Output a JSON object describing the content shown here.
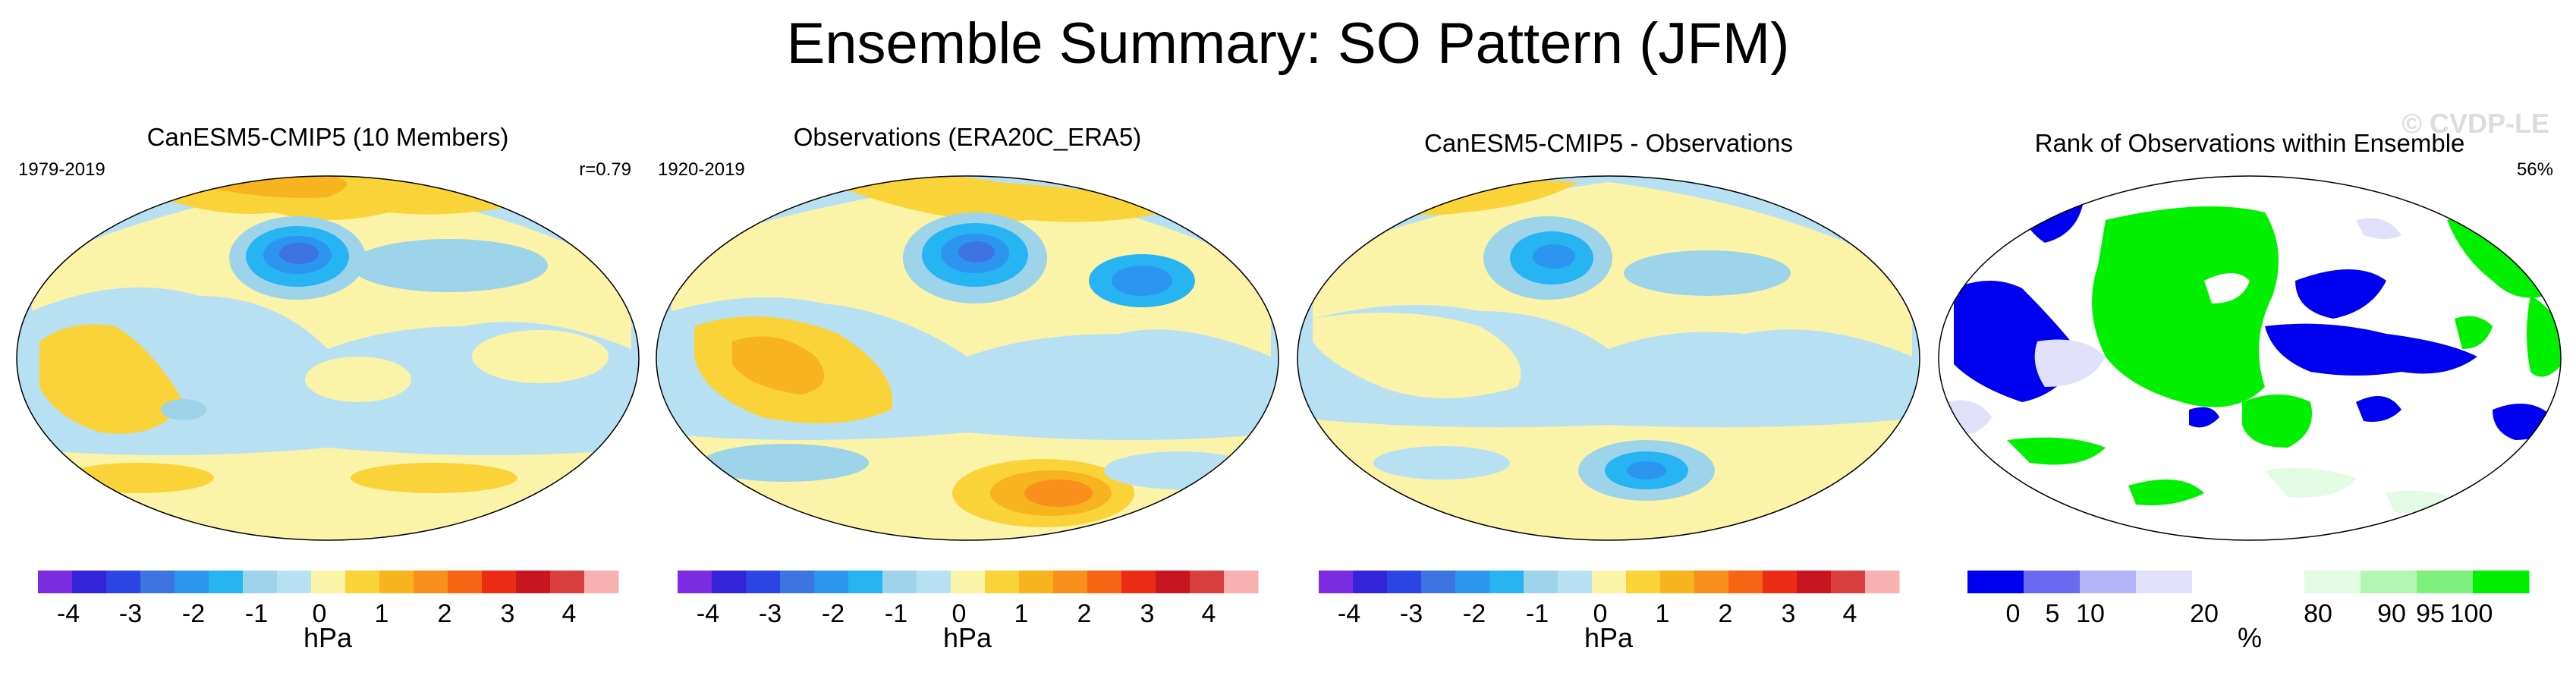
{
  "title": "Ensemble Summary: SO Pattern (JFM)",
  "watermark": "© CVDP-LE",
  "chart_data": [
    {
      "type": "heatmap",
      "title": "CanESM5-CMIP5 (10 Members)",
      "period": "1979-2019",
      "stat": "r=0.79",
      "colorbar": {
        "levels": [
          "-4",
          "-3",
          "-2",
          "-1",
          "0",
          "1",
          "2",
          "3",
          "4"
        ],
        "unit": "hPa",
        "colors": [
          "#7b2be2",
          "#3323d9",
          "#2a45e4",
          "#3d73e2",
          "#2b95f0",
          "#26b4f2",
          "#9dd4ea",
          "#b8e0f3",
          "#fbf3a8",
          "#f9d338",
          "#f8b41f",
          "#f8901b",
          "#f66414",
          "#ec2c15",
          "#c8151f",
          "#db3e3e",
          "#f8b1b1"
        ]
      }
    },
    {
      "type": "heatmap",
      "title": "Observations (ERA20C_ERA5)",
      "period": "1920-2019",
      "colorbar": {
        "levels": [
          "-4",
          "-3",
          "-2",
          "-1",
          "0",
          "1",
          "2",
          "3",
          "4"
        ],
        "unit": "hPa"
      }
    },
    {
      "type": "heatmap",
      "title": "CanESM5-CMIP5 - Observations",
      "colorbar": {
        "levels": [
          "-4",
          "-3",
          "-2",
          "-1",
          "0",
          "1",
          "2",
          "3",
          "4"
        ],
        "unit": "hPa"
      }
    },
    {
      "type": "heatmap",
      "title": "Rank of Observations within Ensemble",
      "stat": "56%",
      "colorbar": {
        "levels": [
          "0",
          "5",
          "10",
          "20",
          "80",
          "90",
          "95",
          "100"
        ],
        "unit": "%",
        "colors": [
          "#0000f0",
          "#6a6af0",
          "#b3b3f5",
          "#e0e0fb",
          "#ffffff",
          "#ffffff",
          "#e2fbe2",
          "#b3f5b3",
          "#7df07d",
          "#00f000"
        ]
      }
    }
  ],
  "colors": {
    "yellow": "#fbf3a8",
    "lightblue": "#b8e0f3",
    "orange": "#f9d338",
    "deepblue": "#2b95f0",
    "green": "#00f000",
    "rankblue": "#0000f0",
    "rankpale": "#e0e0fb"
  }
}
